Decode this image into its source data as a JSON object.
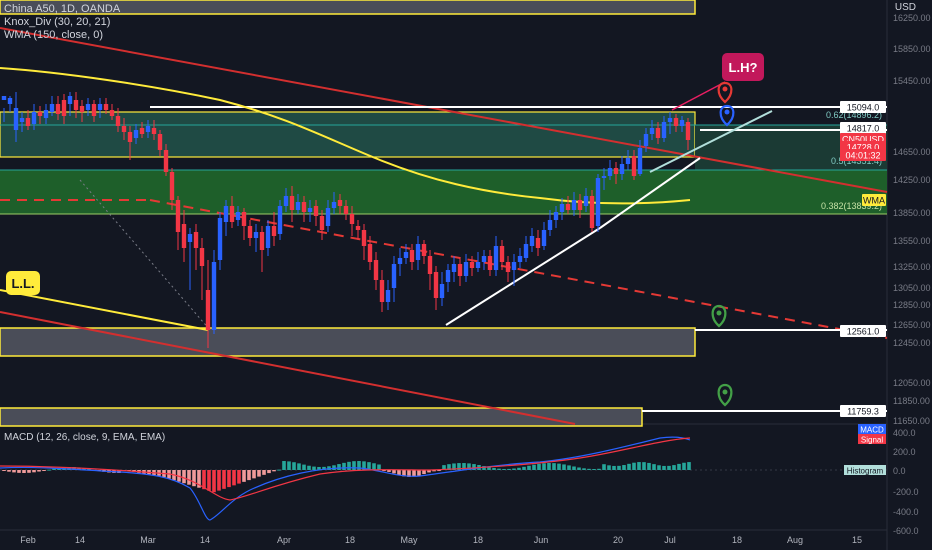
{
  "header": {
    "symbol_line": "China A50, 1D, OANDA",
    "indicator_1": "Knox_Div (30, 20, 21)",
    "indicator_2": "WMA (150, close, 0)",
    "currency": "USD"
  },
  "price_axis": {
    "ticks": [
      "16250.00",
      "15850.00",
      "15450.00",
      "14650.00",
      "14250.00",
      "13850.00",
      "13550.00",
      "13250.00",
      "13050.00",
      "12850.00",
      "12650.00",
      "12450.00",
      "12050.00",
      "11850.00",
      "11650.00"
    ],
    "labels": [
      {
        "text": "15094.0",
        "bg": "#ffffff",
        "fg": "#131722",
        "price": 15094
      },
      {
        "text": "14817.0",
        "bg": "#ffffff",
        "fg": "#131722",
        "price": 14817
      },
      {
        "text": "CN50USD",
        "bg": "#f23645",
        "fg": "#ffffff",
        "price": 14728
      },
      {
        "text": "14728.0",
        "bg": "#f23645",
        "fg": "#ffffff",
        "price": 14700
      },
      {
        "text": "04:01:32",
        "bg": "#f23645",
        "fg": "#ffffff",
        "price": 14650
      },
      {
        "text": "WMA",
        "bg": "#ffeb3b",
        "fg": "#131722",
        "price": 13960
      },
      {
        "text": "12561.0",
        "bg": "#ffffff",
        "fg": "#131722",
        "price": 12561
      },
      {
        "text": "11759.3",
        "bg": "#ffffff",
        "fg": "#131722",
        "price": 11759
      }
    ]
  },
  "fib_labels": [
    {
      "text": "0.62(14896.2)",
      "price": 14896
    },
    {
      "text": "0.5(14351.4)",
      "price": 14351
    },
    {
      "text": "0.382(13839.2)",
      "price": 13839
    }
  ],
  "annotations": {
    "ll": "L.L.",
    "lh": "L.H?"
  },
  "time_axis": [
    "Feb",
    "14",
    "Mar",
    "14",
    "Apr",
    "18",
    "May",
    "18",
    "Jun",
    "20",
    "Jul",
    "18",
    "Aug",
    "15"
  ],
  "macd": {
    "legend": "MACD (12, 26, close, 9, EMA, EMA)",
    "tags": [
      {
        "text": "MACD",
        "bg": "#2962ff"
      },
      {
        "text": "Signal",
        "bg": "#f23645"
      },
      {
        "text": "Histogram",
        "bg": "#b2dfdb"
      }
    ],
    "ticks": [
      "400.0",
      "200.0",
      "0.0",
      "-200.0",
      "-400.0",
      "-600.0"
    ]
  },
  "colors": {
    "background": "#131722",
    "up": "#2962ff",
    "down": "#f23645",
    "wma": "#ffeb3b",
    "zone_green": "#1b5e20",
    "zone_box": "#26a69a",
    "gray_box": "#4a4d58",
    "red_line": "#c62828"
  }
}
